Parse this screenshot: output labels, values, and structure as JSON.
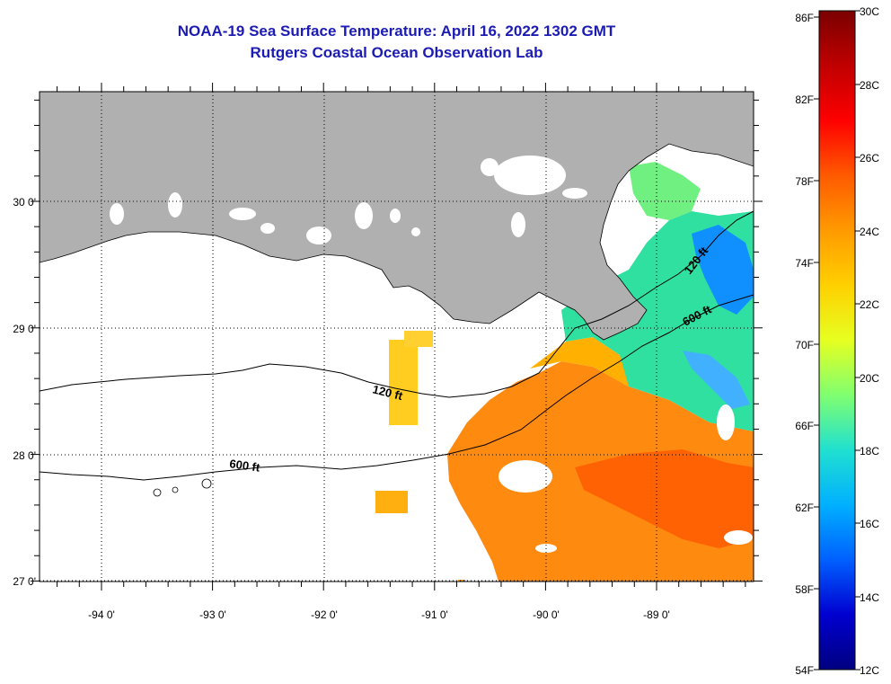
{
  "header": {
    "title": "NOAA-19 Sea Surface Temperature:  April 16, 2022 1302 GMT",
    "subtitle": "Rutgers Coastal Ocean Observation Lab"
  },
  "map": {
    "lon_ticks": [
      "-94 0'",
      "-93 0'",
      "-92 0'",
      "-91 0'",
      "-90 0'",
      "-89 0'"
    ],
    "lat_ticks": [
      "30 0'",
      "29 0'",
      "28 0'",
      "27 0'"
    ],
    "contours": [
      "120 ft",
      "600 ft",
      "120 ft",
      "600 ft"
    ],
    "colors": {
      "land": "#b0b0b0",
      "frame": "#000000",
      "grid": "#000000"
    }
  },
  "colorbar": {
    "fahrenheit_labels": [
      "86F",
      "82F",
      "78F",
      "74F",
      "70F",
      "66F",
      "62F",
      "58F",
      "54F"
    ],
    "celsius_labels": [
      "30C",
      "28C",
      "26C",
      "24C",
      "22C",
      "20C",
      "18C",
      "16C",
      "14C",
      "12C"
    ],
    "gradient": [
      "#7a0000",
      "#c00000",
      "#ff0000",
      "#ff5a00",
      "#ff9a00",
      "#ffd000",
      "#e6ff20",
      "#80ff70",
      "#20e0d0",
      "#00b0ff",
      "#0060ff",
      "#0000d0",
      "#000080"
    ]
  }
}
